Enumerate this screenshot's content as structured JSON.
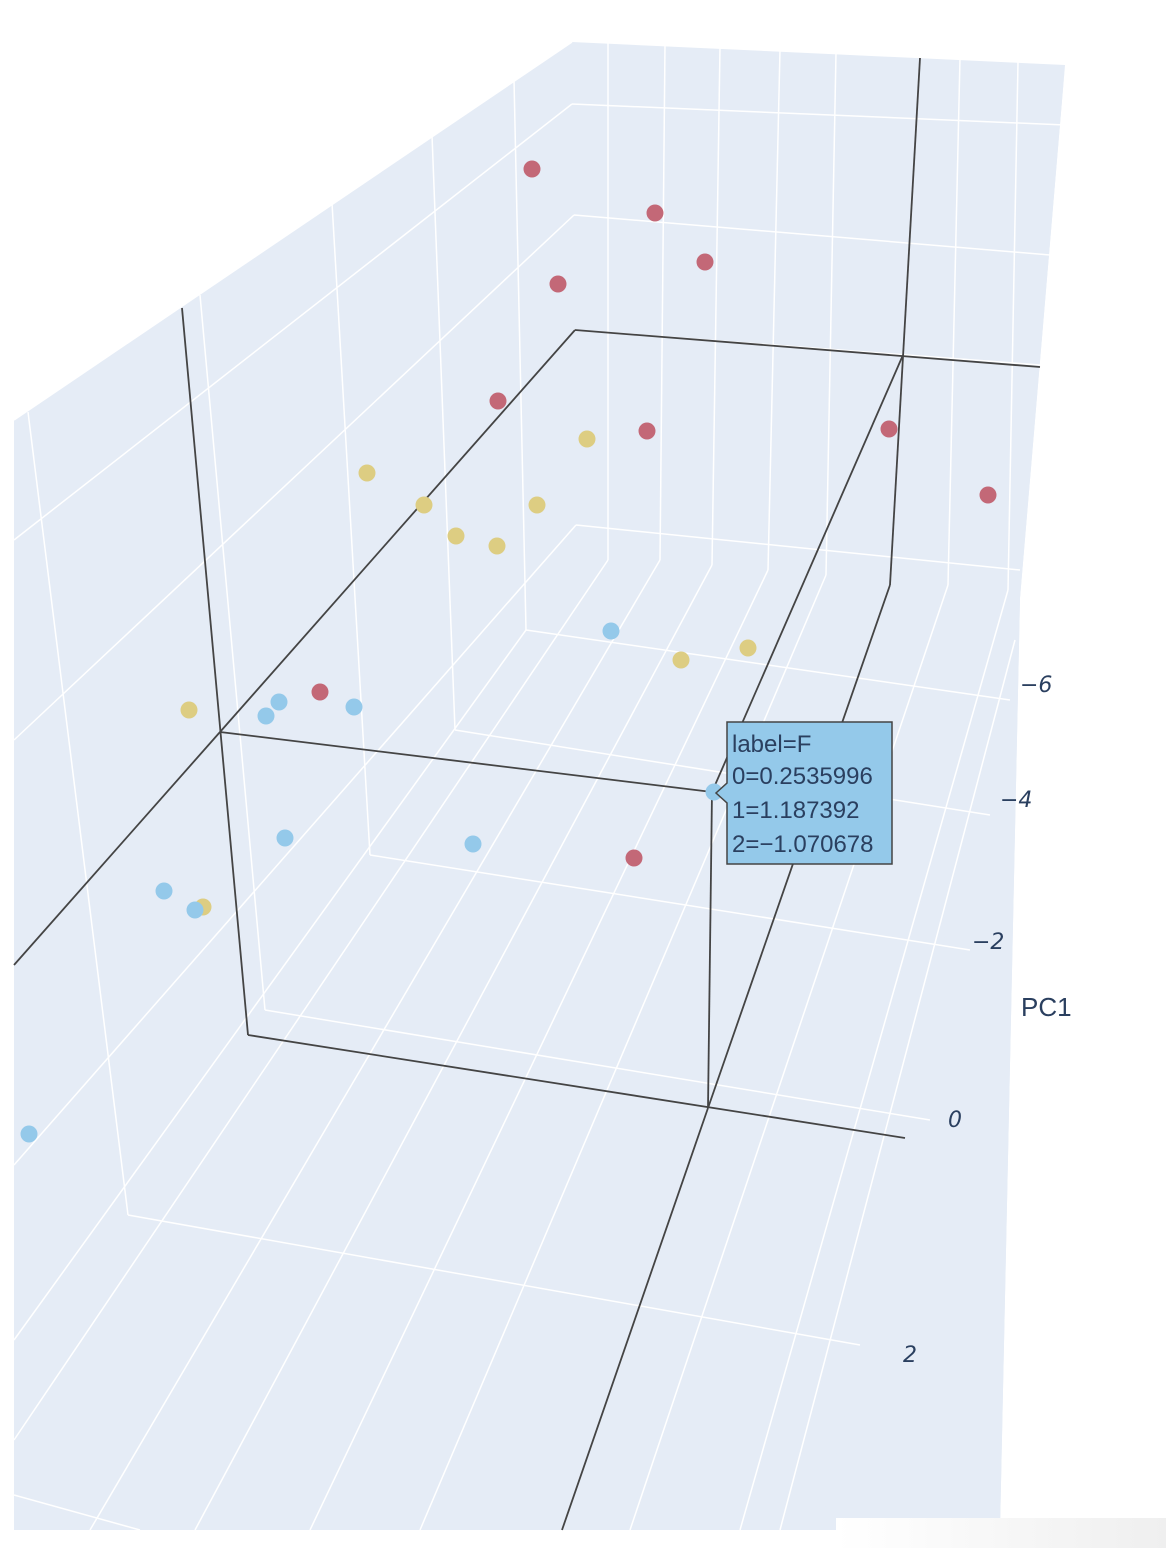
{
  "chart_data": {
    "type": "scatter",
    "dimensions": 3,
    "axes": {
      "x": {
        "title": "PC1",
        "ticks": [
          "−6",
          "−4",
          "−2",
          "0",
          "2"
        ],
        "tick_values": [
          -6,
          -4,
          -2,
          0,
          2
        ]
      }
    },
    "colors": {
      "background": "#e5ecf6",
      "grid": "#ffffff",
      "axis_line": "#444444",
      "series_A": "#c36877",
      "series_B": "#ddcd82",
      "series_C": "#94c9ea"
    },
    "points": [
      {
        "color": "red"
      },
      {
        "color": "red"
      },
      {
        "color": "red"
      },
      {
        "color": "red"
      },
      {
        "color": "red"
      },
      {
        "color": "red"
      },
      {
        "color": "red"
      },
      {
        "color": "red"
      },
      {
        "color": "red"
      },
      {
        "color": "red"
      },
      {
        "color": "yellow"
      },
      {
        "color": "yellow"
      },
      {
        "color": "yellow"
      },
      {
        "color": "yellow"
      },
      {
        "color": "yellow"
      },
      {
        "color": "yellow"
      },
      {
        "color": "yellow"
      },
      {
        "color": "yellow"
      },
      {
        "color": "yellow"
      },
      {
        "color": "yellow"
      },
      {
        "color": "blue"
      },
      {
        "color": "blue"
      },
      {
        "color": "blue"
      },
      {
        "color": "blue"
      },
      {
        "color": "blue"
      },
      {
        "color": "blue"
      },
      {
        "color": "blue"
      },
      {
        "color": "blue"
      },
      {
        "color": "blue"
      },
      {
        "color": "blue"
      }
    ],
    "hover": {
      "lines": [
        "label=F",
        "0=0.2535996",
        "1=1.187392",
        "2=−1.070678"
      ],
      "label": "F",
      "x": 0.2535996,
      "y": 1.187392,
      "z": -1.070678
    }
  }
}
